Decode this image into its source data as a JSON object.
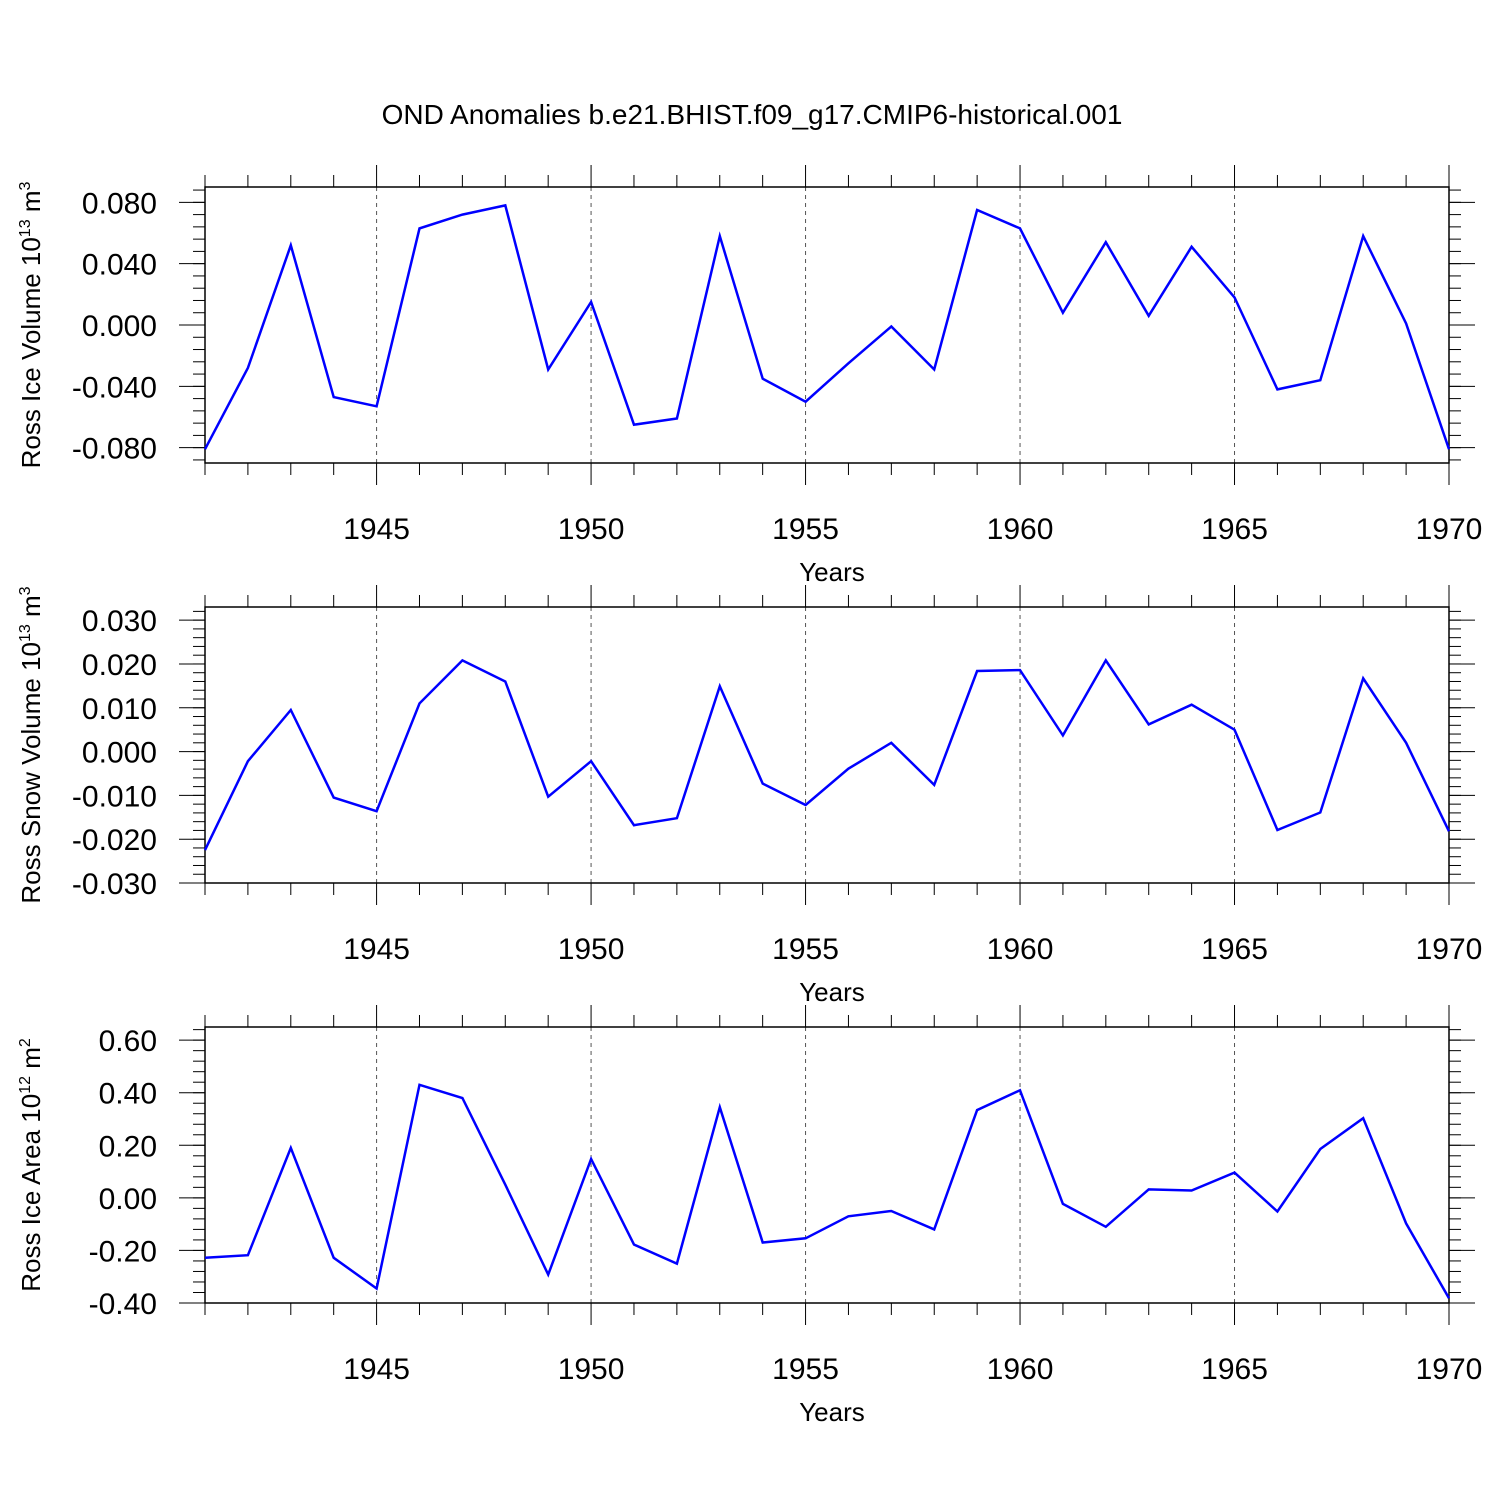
{
  "title": "OND Anomalies b.e21.BHIST.f09_g17.CMIP6-historical.001",
  "line_color": "#0000ff",
  "chart_data": [
    {
      "type": "line",
      "title": "OND Anomalies b.e21.BHIST.f09_g17.CMIP6-historical.001",
      "xlabel": "Years",
      "ylabel": {
        "text": "Ross Ice Volume 10",
        "exp": "13",
        "unit": " m",
        "unit_exp": "3"
      },
      "xlim": [
        1941,
        1970
      ],
      "ylim": [
        -0.09,
        0.09
      ],
      "xticks": [
        1945,
        1950,
        1955,
        1960,
        1965,
        1970
      ],
      "yticks": [
        -0.08,
        -0.04,
        0.0,
        0.04,
        0.08
      ],
      "yticklabels": [
        "-0.080",
        "-0.040",
        "0.000",
        "0.040",
        "0.080"
      ],
      "grid": "vertical dashed at major x ticks",
      "x": [
        1941,
        1942,
        1943,
        1944,
        1945,
        1946,
        1947,
        1948,
        1949,
        1950,
        1951,
        1952,
        1953,
        1954,
        1955,
        1956,
        1957,
        1958,
        1959,
        1960,
        1961,
        1962,
        1963,
        1964,
        1965,
        1966,
        1967,
        1968,
        1969,
        1970
      ],
      "series": [
        {
          "values": [
            -0.081,
            -0.028,
            0.052,
            -0.047,
            -0.053,
            0.063,
            0.072,
            0.078,
            -0.029,
            0.015,
            -0.065,
            -0.061,
            0.058,
            -0.035,
            -0.05,
            -0.025,
            -0.001,
            -0.029,
            0.075,
            0.063,
            0.008,
            0.054,
            0.006,
            0.051,
            0.018,
            -0.042,
            -0.036,
            0.058,
            0.001,
            -0.081
          ]
        }
      ]
    },
    {
      "type": "line",
      "xlabel": "Years",
      "ylabel": {
        "text": "Ross Snow Volume 10",
        "exp": "13",
        "unit": " m",
        "unit_exp": "3"
      },
      "xlim": [
        1941,
        1970
      ],
      "ylim": [
        -0.03,
        0.033
      ],
      "xticks": [
        1945,
        1950,
        1955,
        1960,
        1965,
        1970
      ],
      "yticks": [
        -0.03,
        -0.02,
        -0.01,
        0.0,
        0.01,
        0.02,
        0.03
      ],
      "yticklabels": [
        "-0.030",
        "-0.020",
        "-0.010",
        "0.000",
        "0.010",
        "0.020",
        "0.030"
      ],
      "grid": "vertical dashed at major x ticks",
      "x": [
        1941,
        1942,
        1943,
        1944,
        1945,
        1946,
        1947,
        1948,
        1949,
        1950,
        1951,
        1952,
        1953,
        1954,
        1955,
        1956,
        1957,
        1958,
        1959,
        1960,
        1961,
        1962,
        1963,
        1964,
        1965,
        1966,
        1967,
        1968,
        1969,
        1970
      ],
      "series": [
        {
          "values": [
            -0.0225,
            -0.0022,
            0.0095,
            -0.0105,
            -0.0136,
            0.011,
            0.0208,
            0.016,
            -0.0103,
            -0.0022,
            -0.0168,
            -0.0152,
            0.0149,
            -0.0073,
            -0.0122,
            -0.0039,
            0.002,
            -0.0076,
            0.0184,
            0.0186,
            0.0037,
            0.0208,
            0.0062,
            0.0107,
            0.005,
            -0.0179,
            -0.0139,
            0.0167,
            0.002,
            -0.0182
          ]
        }
      ]
    },
    {
      "type": "line",
      "xlabel": "Years",
      "ylabel": {
        "text": "Ross Ice Area 10",
        "exp": "12",
        "unit": " m",
        "unit_exp": "2"
      },
      "xlim": [
        1941,
        1970
      ],
      "ylim": [
        -0.4,
        0.65
      ],
      "xticks": [
        1945,
        1950,
        1955,
        1960,
        1965,
        1970
      ],
      "yticks": [
        -0.4,
        -0.2,
        0.0,
        0.2,
        0.4,
        0.6
      ],
      "yticklabels": [
        "-0.40",
        "-0.20",
        "0.00",
        "0.20",
        "0.40",
        "0.60"
      ],
      "grid": "vertical dashed at major x ticks",
      "x": [
        1941,
        1942,
        1943,
        1944,
        1945,
        1946,
        1947,
        1948,
        1949,
        1950,
        1951,
        1952,
        1953,
        1954,
        1955,
        1956,
        1957,
        1958,
        1959,
        1960,
        1961,
        1962,
        1963,
        1964,
        1965,
        1966,
        1967,
        1968,
        1969,
        1970
      ],
      "series": [
        {
          "values": [
            -0.228,
            -0.218,
            0.19,
            -0.228,
            -0.345,
            0.43,
            0.38,
            0.05,
            -0.292,
            0.148,
            -0.178,
            -0.25,
            0.345,
            -0.17,
            -0.154,
            -0.07,
            -0.05,
            -0.12,
            0.334,
            0.409,
            -0.023,
            -0.11,
            0.032,
            0.028,
            0.096,
            -0.052,
            0.186,
            0.303,
            -0.097,
            -0.382
          ]
        }
      ]
    }
  ]
}
